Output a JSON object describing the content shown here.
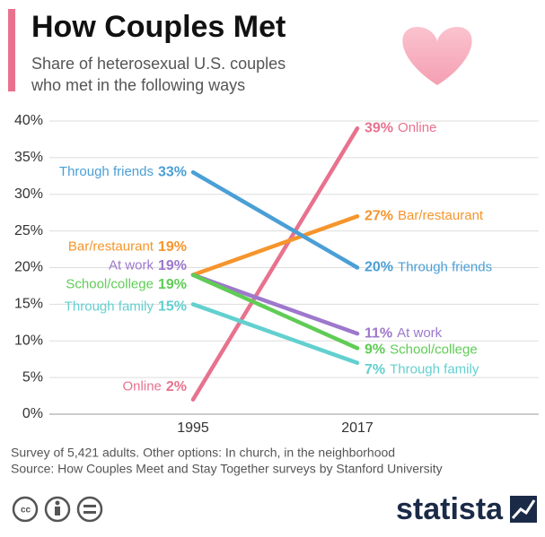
{
  "chart_data": {
    "type": "slope",
    "title": "How Couples Met",
    "subtitle": [
      "Share of heterosexual U.S. couples",
      "who met in the following ways"
    ],
    "categories": [
      "1995",
      "2017"
    ],
    "series": [
      {
        "name": "Online",
        "color": "#e8728e",
        "values": [
          2,
          39
        ],
        "value_labels": [
          "2%",
          "39%"
        ]
      },
      {
        "name": "Bar/restaurant",
        "color": "#f5952c",
        "values": [
          19,
          27
        ],
        "value_labels": [
          "19%",
          "27%"
        ]
      },
      {
        "name": "Through friends",
        "color": "#4a9fd6",
        "values": [
          33,
          20
        ],
        "value_labels": [
          "33%",
          "20%"
        ]
      },
      {
        "name": "At work",
        "color": "#9d78cc",
        "values": [
          19,
          11
        ],
        "value_labels": [
          "19%",
          "11%"
        ]
      },
      {
        "name": "School/college",
        "color": "#5fcc55",
        "values": [
          19,
          9
        ],
        "value_labels": [
          "19%",
          "9%"
        ]
      },
      {
        "name": "Through family",
        "color": "#62d0cf",
        "values": [
          15,
          7
        ],
        "value_labels": [
          "15%",
          "7%"
        ]
      }
    ],
    "ylim": [
      0,
      40
    ],
    "yticks": [
      {
        "value": 0,
        "label": "0%"
      },
      {
        "value": 5,
        "label": "5%"
      },
      {
        "value": 10,
        "label": "10%"
      },
      {
        "value": 15,
        "label": "15%"
      },
      {
        "value": 20,
        "label": "20%"
      },
      {
        "value": 25,
        "label": "25%"
      },
      {
        "value": 30,
        "label": "30%"
      },
      {
        "value": 35,
        "label": "35%"
      },
      {
        "value": 40,
        "label": "40%"
      }
    ],
    "grid": true,
    "notes": [
      "Survey of 5,421 adults. Other options: In church, in the neighborhood",
      "Source: How Couples Meet and Stay Together surveys by Stanford University"
    ],
    "brand": "statista"
  }
}
